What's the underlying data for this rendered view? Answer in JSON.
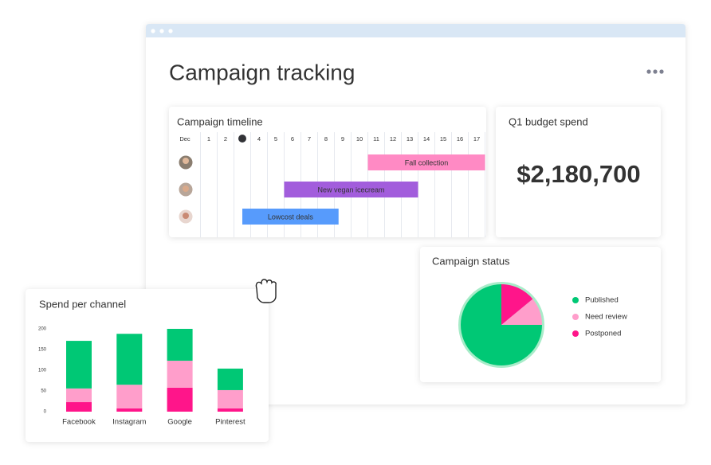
{
  "window": {
    "title": "Campaign tracking"
  },
  "timeline": {
    "title": "Campaign timeline",
    "month": "Dec",
    "days": [
      1,
      2,
      3,
      4,
      5,
      6,
      7,
      8,
      9,
      10,
      11,
      12,
      13,
      14,
      15,
      16,
      17
    ],
    "today": 3,
    "tasks": [
      {
        "label": "Fall collection",
        "start": 11,
        "end": 18,
        "color": "#ff8ac4"
      },
      {
        "label": "New vegan icecream",
        "start": 6,
        "end": 14,
        "color": "#a25ddc"
      },
      {
        "label": "Lowcost deals",
        "start": 3.5,
        "end": 9.25,
        "color": "#579bfc"
      }
    ]
  },
  "budget": {
    "title": "Q1 budget spend",
    "value": "$2,180,700"
  },
  "chart_data": [
    {
      "type": "pie",
      "title": "Campaign status",
      "categories": [
        "Published",
        "Need review",
        "Postponed"
      ],
      "values": [
        75,
        11,
        14
      ],
      "colors": [
        "#00c875",
        "#ff9ecb",
        "#ff158a"
      ]
    },
    {
      "type": "bar",
      "stacked": true,
      "title": "Spend per channel",
      "categories": [
        "Facebook",
        "Instagram",
        "Google",
        "Pinterest"
      ],
      "series": [
        {
          "color": "#ff158a",
          "values": [
            23,
            8,
            58,
            8
          ]
        },
        {
          "color": "#ff9ecb",
          "values": [
            33,
            57,
            65,
            44
          ]
        },
        {
          "color": "#00c875",
          "values": [
            115,
            123,
            77,
            52
          ]
        }
      ],
      "ylim": [
        0,
        200
      ],
      "yticks": [
        0,
        50,
        100,
        150,
        200
      ]
    }
  ]
}
